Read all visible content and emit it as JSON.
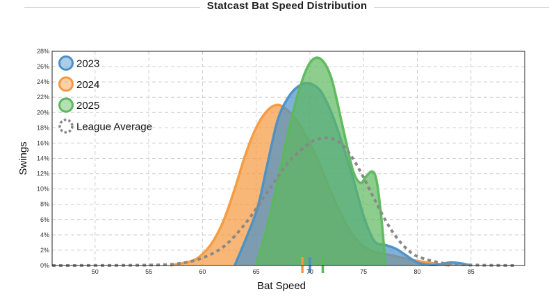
{
  "chart_data": {
    "type": "area",
    "title": "Statcast Bat Speed Distribution",
    "xlabel": "Bat Speed",
    "ylabel": "Swings",
    "xlim": [
      46,
      90
    ],
    "ylim": [
      0,
      28
    ],
    "x_ticks": [
      50,
      55,
      60,
      65,
      70,
      75,
      80,
      85
    ],
    "y_ticks": [
      0,
      2,
      4,
      6,
      8,
      10,
      12,
      14,
      16,
      18,
      20,
      22,
      24,
      26,
      28
    ],
    "y_tick_format": "%",
    "grid": true,
    "legend_position": "top-left",
    "series": [
      {
        "name": "2023",
        "color": "#4a90c8",
        "points": [
          [
            63,
            0
          ],
          [
            65,
            7
          ],
          [
            66,
            13
          ],
          [
            67,
            19
          ],
          [
            68,
            22
          ],
          [
            69,
            23.5
          ],
          [
            70,
            23.8
          ],
          [
            71,
            22.8
          ],
          [
            72,
            20
          ],
          [
            73,
            16
          ],
          [
            74,
            11.5
          ],
          [
            75,
            6.5
          ],
          [
            76,
            3.2
          ],
          [
            77,
            2.7
          ],
          [
            78,
            2.2
          ],
          [
            79,
            1.3
          ],
          [
            80,
            0.4
          ],
          [
            81,
            0.1
          ],
          [
            82,
            0.1
          ],
          [
            83,
            0.4
          ],
          [
            84,
            0.3
          ],
          [
            85,
            0
          ]
        ],
        "marker": 70.0
      },
      {
        "name": "2024",
        "color": "#f5993d",
        "points": [
          [
            57,
            0
          ],
          [
            59,
            0.6
          ],
          [
            60,
            1.5
          ],
          [
            61,
            3.2
          ],
          [
            62,
            6
          ],
          [
            63,
            10
          ],
          [
            64,
            14.5
          ],
          [
            65,
            18
          ],
          [
            66,
            20.2
          ],
          [
            67,
            21
          ],
          [
            68,
            20.2
          ],
          [
            69,
            18.5
          ],
          [
            70,
            16
          ],
          [
            71,
            13
          ],
          [
            72,
            9.5
          ],
          [
            73,
            6.5
          ],
          [
            74,
            4
          ],
          [
            75,
            2.5
          ],
          [
            76,
            1.8
          ],
          [
            77,
            1.5
          ],
          [
            78,
            1.2
          ],
          [
            79,
            0.9
          ],
          [
            80,
            0.6
          ],
          [
            81,
            0.4
          ],
          [
            82,
            0.2
          ],
          [
            83,
            0
          ]
        ],
        "marker": 69.3
      },
      {
        "name": "2025",
        "color": "#5cb85c",
        "points": [
          [
            65,
            0
          ],
          [
            66,
            5
          ],
          [
            67,
            11
          ],
          [
            68,
            17.5
          ],
          [
            69,
            23
          ],
          [
            70,
            26.5
          ],
          [
            71,
            27
          ],
          [
            72,
            24.5
          ],
          [
            73,
            18.5
          ],
          [
            74,
            12.5
          ],
          [
            74.7,
            10.8
          ],
          [
            75.2,
            11.6
          ],
          [
            75.8,
            12.3
          ],
          [
            76.2,
            11.2
          ],
          [
            76.6,
            7
          ],
          [
            76.9,
            2.5
          ],
          [
            77,
            0
          ]
        ],
        "marker": 71.2
      },
      {
        "name": "League Average",
        "color": "#888888",
        "style": "dotted",
        "points": [
          [
            46,
            0
          ],
          [
            55,
            0.05
          ],
          [
            58,
            0.3
          ],
          [
            60,
            1
          ],
          [
            62,
            2.5
          ],
          [
            64,
            5.5
          ],
          [
            66,
            9.5
          ],
          [
            68,
            13.5
          ],
          [
            70,
            16
          ],
          [
            71,
            16.6
          ],
          [
            72,
            16.6
          ],
          [
            73,
            15.8
          ],
          [
            74,
            14
          ],
          [
            75,
            11.5
          ],
          [
            76,
            8.7
          ],
          [
            77,
            6
          ],
          [
            78,
            3.8
          ],
          [
            79,
            2.2
          ],
          [
            80,
            1.2
          ],
          [
            82,
            0.4
          ],
          [
            84,
            0.12
          ],
          [
            86,
            0.04
          ],
          [
            89,
            0
          ]
        ]
      }
    ]
  },
  "colors": {
    "c2023": "#4a90c8",
    "c2024": "#f5993d",
    "c2025": "#5cb85c",
    "league": "#888888"
  }
}
